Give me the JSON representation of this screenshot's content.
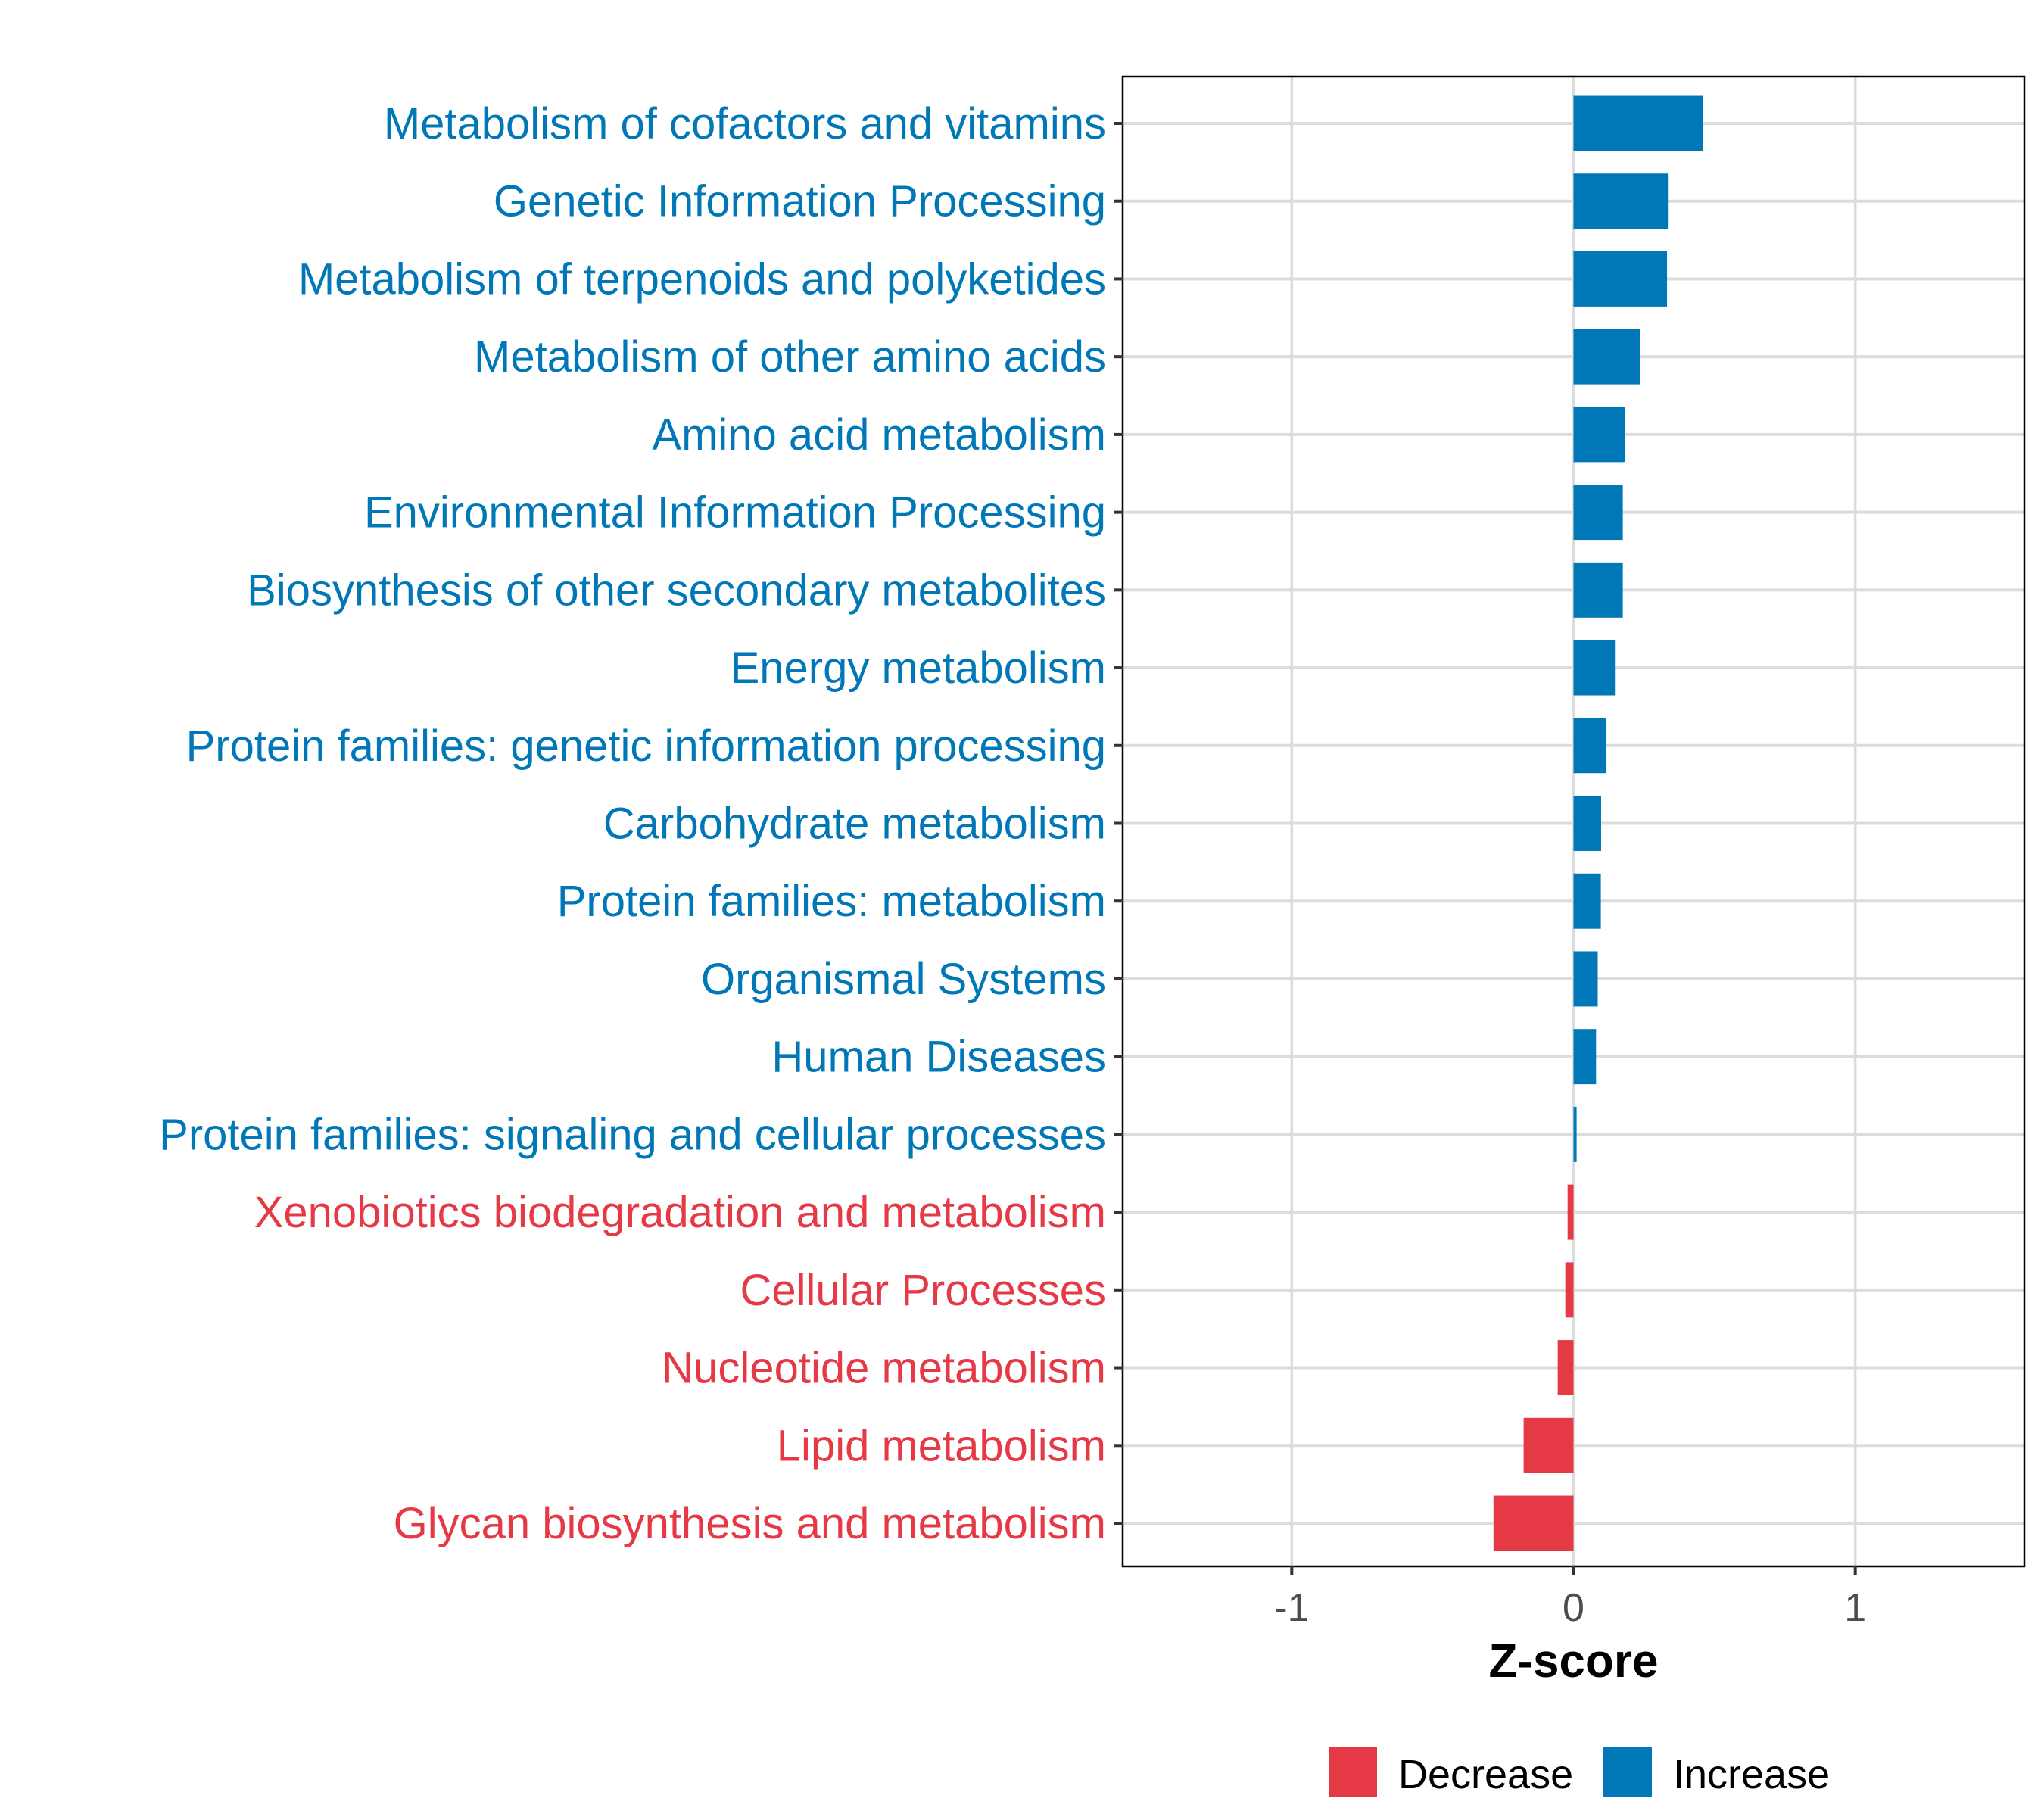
{
  "chart_data": {
    "type": "bar",
    "orientation": "horizontal",
    "title": "",
    "xlabel": "Z-score",
    "ylabel": "",
    "xlim": [
      -1.6,
      1.6
    ],
    "xticks": [
      -1,
      0,
      1
    ],
    "xtick_labels": [
      "-1",
      "0",
      "1"
    ],
    "grid": true,
    "legend": {
      "position": "bottom",
      "entries": [
        {
          "label": "Decrease",
          "color": "#E63946"
        },
        {
          "label": "Increase",
          "color": "#0077B6"
        }
      ]
    },
    "categories": [
      "Metabolism of cofactors and vitamins",
      "Genetic Information Processing",
      "Metabolism of terpenoids and polyketides",
      "Metabolism of other amino acids",
      "Amino acid metabolism",
      "Environmental Information Processing",
      "Biosynthesis of other secondary metabolites",
      "Energy metabolism",
      "Protein families: genetic information processing",
      "Carbohydrate metabolism",
      "Protein families: metabolism",
      "Organismal Systems",
      "Human Diseases",
      "Protein families: signaling and cellular processes",
      "Xenobiotics biodegradation and metabolism",
      "Cellular Processes",
      "Nucleotide metabolism",
      "Lipid metabolism",
      "Glycan biosynthesis and metabolism"
    ],
    "values": [
      0.46,
      0.335,
      0.332,
      0.236,
      0.182,
      0.175,
      0.175,
      0.147,
      0.117,
      0.098,
      0.097,
      0.086,
      0.08,
      0.011,
      -0.021,
      -0.029,
      -0.056,
      -0.177,
      -0.284
    ],
    "groups": [
      "Increase",
      "Increase",
      "Increase",
      "Increase",
      "Increase",
      "Increase",
      "Increase",
      "Increase",
      "Increase",
      "Increase",
      "Increase",
      "Increase",
      "Increase",
      "Increase",
      "Decrease",
      "Decrease",
      "Decrease",
      "Decrease",
      "Decrease"
    ],
    "colors": {
      "Increase": "#0077B6",
      "Decrease": "#E63946"
    }
  }
}
